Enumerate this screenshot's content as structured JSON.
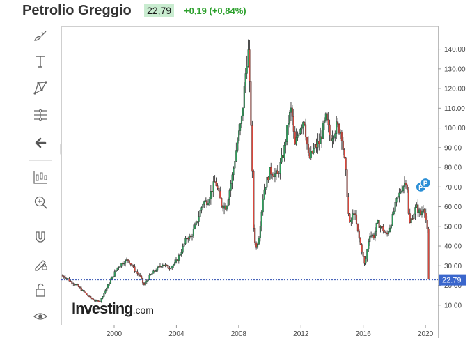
{
  "header": {
    "title": "Petrolio Greggio",
    "price": "22,79",
    "change": "+0,19 (+0,84%)"
  },
  "toolbar": {
    "items": [
      "brush-icon",
      "text-icon",
      "pattern-icon",
      "fibonacci-icon",
      "back-arrow-icon",
      "indicators-icon",
      "zoom-icon",
      "magnet-icon",
      "lock-drawing-icon",
      "unlock-icon",
      "eye-icon"
    ]
  },
  "watermark": {
    "brand": "Investing",
    "suffix": ".com"
  },
  "colors": {
    "up": "#2e9e5b",
    "down": "#d9473c",
    "wick": "#222222",
    "last_line": "#2f4fb0",
    "last_label_bg": "#3a66cc"
  },
  "chart_data": {
    "type": "candlestick",
    "title": "",
    "xlabel": "",
    "ylabel": "",
    "ylim": [
      0,
      148
    ],
    "xlim": [
      1996.6,
      2020.8
    ],
    "yticks": [
      "10.00",
      "20.00",
      "30.00",
      "40.00",
      "50.00",
      "60.00",
      "70.00",
      "80.00",
      "90.00",
      "100.00",
      "110.00",
      "120.00",
      "130.00",
      "140.00"
    ],
    "xticks": [
      "2000",
      "2004",
      "2008",
      "2012",
      "2016",
      "2020"
    ],
    "last_value": "22.79",
    "events": [
      {
        "label": "P",
        "x": 2019.7,
        "y": 70
      },
      {
        "label": "P",
        "x": 2020.0,
        "y": 72
      }
    ],
    "series_points": [
      [
        1996.6,
        25
      ],
      [
        1996.9,
        24
      ],
      [
        1997.2,
        22
      ],
      [
        1997.6,
        20
      ],
      [
        1998.0,
        17
      ],
      [
        1998.4,
        14
      ],
      [
        1998.8,
        12
      ],
      [
        1999.1,
        12
      ],
      [
        1999.4,
        17
      ],
      [
        1999.8,
        23
      ],
      [
        2000.2,
        29
      ],
      [
        2000.6,
        32
      ],
      [
        2000.9,
        33
      ],
      [
        2001.3,
        28
      ],
      [
        2001.7,
        24
      ],
      [
        2001.9,
        20
      ],
      [
        2002.3,
        25
      ],
      [
        2002.7,
        28
      ],
      [
        2003.1,
        31
      ],
      [
        2003.5,
        29
      ],
      [
        2003.9,
        31
      ],
      [
        2004.3,
        37
      ],
      [
        2004.7,
        45
      ],
      [
        2004.9,
        44
      ],
      [
        2005.3,
        52
      ],
      [
        2005.7,
        62
      ],
      [
        2006.0,
        63
      ],
      [
        2006.5,
        73
      ],
      [
        2006.9,
        61
      ],
      [
        2007.2,
        60
      ],
      [
        2007.6,
        76
      ],
      [
        2007.9,
        92
      ],
      [
        2008.2,
        105
      ],
      [
        2008.5,
        133
      ],
      [
        2008.6,
        141
      ],
      [
        2008.8,
        100
      ],
      [
        2008.95,
        50
      ],
      [
        2009.1,
        38
      ],
      [
        2009.3,
        45
      ],
      [
        2009.6,
        68
      ],
      [
        2010.0,
        78
      ],
      [
        2010.5,
        76
      ],
      [
        2010.9,
        88
      ],
      [
        2011.2,
        104
      ],
      [
        2011.4,
        110
      ],
      [
        2011.6,
        90
      ],
      [
        2011.9,
        100
      ],
      [
        2012.2,
        105
      ],
      [
        2012.5,
        84
      ],
      [
        2012.9,
        90
      ],
      [
        2013.2,
        93
      ],
      [
        2013.6,
        105
      ],
      [
        2013.9,
        95
      ],
      [
        2014.3,
        101
      ],
      [
        2014.6,
        98
      ],
      [
        2014.9,
        75
      ],
      [
        2015.1,
        50
      ],
      [
        2015.4,
        58
      ],
      [
        2015.7,
        45
      ],
      [
        2015.9,
        38
      ],
      [
        2016.1,
        30
      ],
      [
        2016.4,
        46
      ],
      [
        2016.7,
        45
      ],
      [
        2016.9,
        52
      ],
      [
        2017.3,
        48
      ],
      [
        2017.5,
        45
      ],
      [
        2017.8,
        52
      ],
      [
        2018.1,
        62
      ],
      [
        2018.5,
        70
      ],
      [
        2018.8,
        74
      ],
      [
        2018.95,
        50
      ],
      [
        2019.1,
        54
      ],
      [
        2019.4,
        60
      ],
      [
        2019.7,
        56
      ],
      [
        2019.9,
        61
      ],
      [
        2020.05,
        52
      ],
      [
        2020.15,
        45
      ],
      [
        2020.2,
        22.79
      ]
    ]
  }
}
